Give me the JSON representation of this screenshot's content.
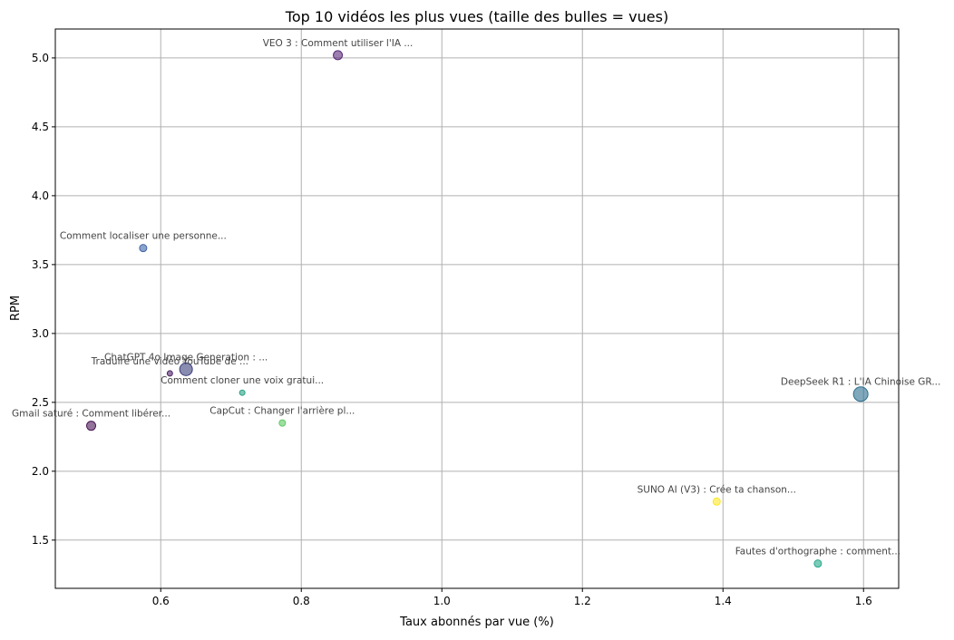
{
  "chart_data": {
    "type": "scatter",
    "title": "Top 10 vidéos les plus vues (taille des bulles = vues)",
    "xlabel": "Taux abonnés par vue (%)",
    "ylabel": "RPM",
    "xlim": [
      0.45,
      1.65
    ],
    "ylim": [
      1.15,
      5.21
    ],
    "x_ticks": [
      0.6,
      0.8,
      1.0,
      1.2,
      1.4,
      1.6
    ],
    "x_tick_labels": [
      "0.6",
      "0.8",
      "1.0",
      "1.2",
      "1.4",
      "1.6"
    ],
    "y_ticks": [
      1.5,
      2.0,
      2.5,
      3.0,
      3.5,
      4.0,
      4.5,
      5.0
    ],
    "y_tick_labels": [
      "1.5",
      "2.0",
      "2.5",
      "3.0",
      "3.5",
      "4.0",
      "4.5",
      "5.0"
    ],
    "grid": true,
    "points": [
      {
        "label": "VEO 3 : Comment utiliser l'IA ...",
        "x": 0.852,
        "y": 5.02,
        "size": 5,
        "color": "#5a2a7a"
      },
      {
        "label": "Comment localiser une personne...",
        "x": 0.575,
        "y": 3.62,
        "size": 4,
        "color": "#3e64a8"
      },
      {
        "label": "ChatGPT 4o Image Generation : ...",
        "x": 0.636,
        "y": 2.74,
        "size": 7,
        "color": "#3a3f7c"
      },
      {
        "label": "Traduire une vidéo YouTube de ...",
        "x": 0.613,
        "y": 2.71,
        "size": 3,
        "color": "#4a1f64"
      },
      {
        "label": "Comment cloner une voix gratui...",
        "x": 0.716,
        "y": 2.57,
        "size": 3,
        "color": "#29a183"
      },
      {
        "label": "Gmail saturé : Comment libérer...",
        "x": 0.501,
        "y": 2.33,
        "size": 5,
        "color": "#4b1656"
      },
      {
        "label": "CapCut : Changer l'arrière pl...",
        "x": 0.773,
        "y": 2.35,
        "size": 3.5,
        "color": "#5ec962"
      },
      {
        "label": "DeepSeek R1 : L'IA Chinoise GR...",
        "x": 1.596,
        "y": 2.56,
        "size": 8,
        "color": "#2c6e90"
      },
      {
        "label": "SUNO AI (V3) : Crée ta chanson...",
        "x": 1.391,
        "y": 1.78,
        "size": 4,
        "color": "#fde725"
      },
      {
        "label": "Fautes d'orthographe : comment...",
        "x": 1.535,
        "y": 1.33,
        "size": 4,
        "color": "#25a88b"
      }
    ]
  }
}
